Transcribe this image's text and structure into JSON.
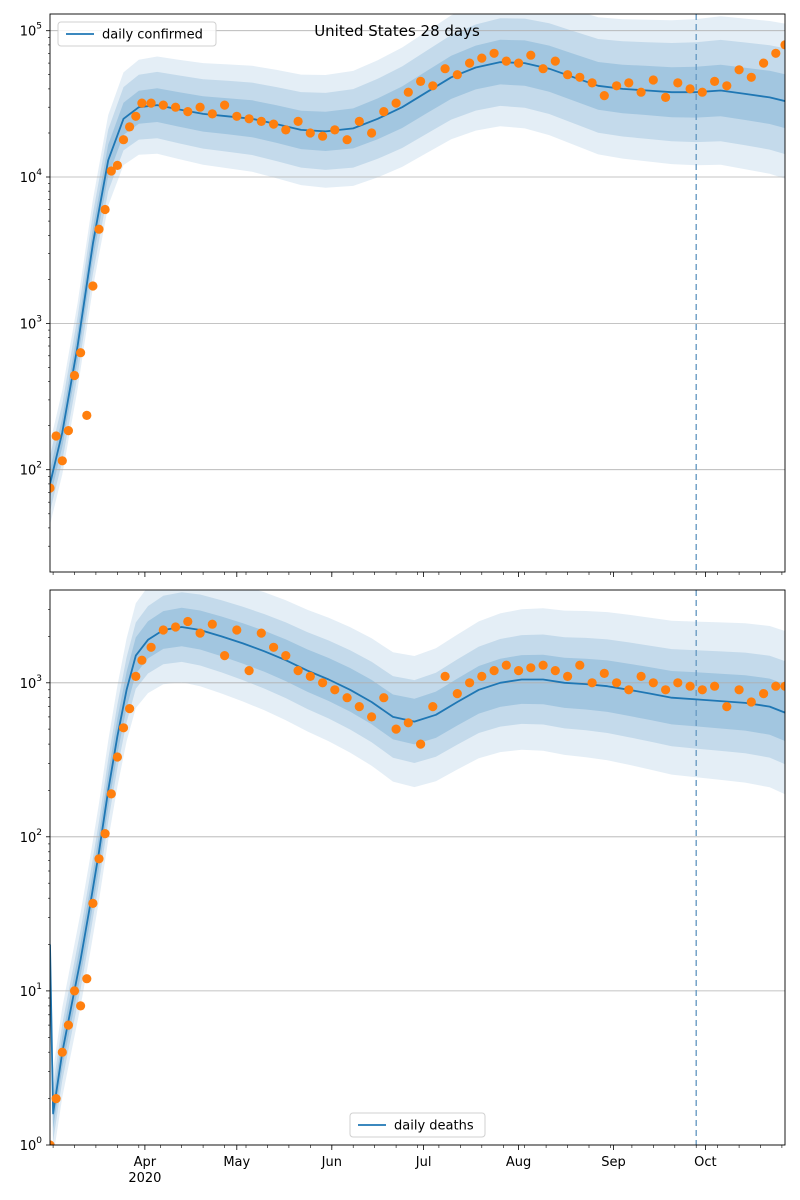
{
  "figure": {
    "title": "United States 28 days"
  },
  "chart_data": [
    {
      "type": "line",
      "title": "United States 28 days",
      "yscale": "log",
      "ylim": [
        20,
        130000
      ],
      "xlim": [
        "2020-03-01",
        "2020-10-27"
      ],
      "y_ticks": [
        {
          "value": 100,
          "base": "10",
          "exp": "2"
        },
        {
          "value": 1000,
          "base": "10",
          "exp": "3"
        },
        {
          "value": 10000,
          "base": "10",
          "exp": "4"
        },
        {
          "value": 100000,
          "base": "10",
          "exp": "5"
        }
      ],
      "x_tick_labels": [],
      "grid": "y-major",
      "legend": {
        "position": "top-left",
        "entries": [
          "daily confirmed"
        ]
      },
      "forecast_start": "2020-09-28",
      "model": {
        "name": "daily confirmed",
        "color": "#1f77b4",
        "dates": [
          "2020-03-01",
          "2020-03-05",
          "2020-03-10",
          "2020-03-15",
          "2020-03-20",
          "2020-03-25",
          "2020-03-30",
          "2020-04-05",
          "2020-04-12",
          "2020-04-20",
          "2020-04-28",
          "2020-05-06",
          "2020-05-14",
          "2020-05-22",
          "2020-05-30",
          "2020-06-08",
          "2020-06-16",
          "2020-06-24",
          "2020-07-02",
          "2020-07-10",
          "2020-07-18",
          "2020-07-26",
          "2020-08-03",
          "2020-08-11",
          "2020-08-19",
          "2020-08-27",
          "2020-09-04",
          "2020-09-12",
          "2020-09-20",
          "2020-09-28",
          "2020-10-06",
          "2020-10-14",
          "2020-10-22",
          "2020-10-27"
        ],
        "values": [
          80,
          180,
          700,
          3500,
          13000,
          25000,
          30000,
          31000,
          29000,
          27000,
          26000,
          25000,
          23000,
          21000,
          20500,
          21500,
          25000,
          30000,
          38000,
          48000,
          56000,
          61000,
          60000,
          55000,
          48000,
          42000,
          40000,
          39000,
          38000,
          38000,
          39000,
          37000,
          35000,
          33000
        ],
        "band_ratios": [
          1.25,
          1.55,
          1.9
        ]
      },
      "observed": {
        "color": "#ff7f0e",
        "dates": [
          "2020-03-01",
          "2020-03-03",
          "2020-03-05",
          "2020-03-07",
          "2020-03-09",
          "2020-03-11",
          "2020-03-13",
          "2020-03-15",
          "2020-03-17",
          "2020-03-19",
          "2020-03-21",
          "2020-03-23",
          "2020-03-25",
          "2020-03-27",
          "2020-03-29",
          "2020-03-31",
          "2020-04-03",
          "2020-04-07",
          "2020-04-11",
          "2020-04-15",
          "2020-04-19",
          "2020-04-23",
          "2020-04-27",
          "2020-05-01",
          "2020-05-05",
          "2020-05-09",
          "2020-05-13",
          "2020-05-17",
          "2020-05-21",
          "2020-05-25",
          "2020-05-29",
          "2020-06-02",
          "2020-06-06",
          "2020-06-10",
          "2020-06-14",
          "2020-06-18",
          "2020-06-22",
          "2020-06-26",
          "2020-06-30",
          "2020-07-04",
          "2020-07-08",
          "2020-07-12",
          "2020-07-16",
          "2020-07-20",
          "2020-07-24",
          "2020-07-28",
          "2020-08-01",
          "2020-08-05",
          "2020-08-09",
          "2020-08-13",
          "2020-08-17",
          "2020-08-21",
          "2020-08-25",
          "2020-08-29",
          "2020-09-02",
          "2020-09-06",
          "2020-09-10",
          "2020-09-14",
          "2020-09-18",
          "2020-09-22",
          "2020-09-26",
          "2020-09-30",
          "2020-10-04",
          "2020-10-08",
          "2020-10-12",
          "2020-10-16",
          "2020-10-20",
          "2020-10-24",
          "2020-10-27"
        ],
        "values": [
          75,
          170,
          115,
          185,
          440,
          630,
          235,
          1800,
          4400,
          6000,
          11000,
          12000,
          18000,
          22000,
          26000,
          32000,
          32000,
          31000,
          30000,
          28000,
          30000,
          27000,
          31000,
          26000,
          25000,
          24000,
          23000,
          21000,
          24000,
          20000,
          19000,
          21000,
          18000,
          24000,
          20000,
          28000,
          32000,
          38000,
          45000,
          42000,
          55000,
          50000,
          60000,
          65000,
          70000,
          62000,
          60000,
          68000,
          55000,
          62000,
          50000,
          48000,
          44000,
          36000,
          42000,
          44000,
          38000,
          46000,
          35000,
          44000,
          40000,
          38000,
          45000,
          42000,
          54000,
          48000,
          60000,
          70000,
          80000
        ]
      }
    },
    {
      "type": "line",
      "yscale": "log",
      "ylim": [
        1,
        4000
      ],
      "xlim": [
        "2020-03-01",
        "2020-10-27"
      ],
      "y_ticks": [
        {
          "value": 1,
          "base": "10",
          "exp": "0"
        },
        {
          "value": 10,
          "base": "10",
          "exp": "1"
        },
        {
          "value": 100,
          "base": "10",
          "exp": "2"
        },
        {
          "value": 1000,
          "base": "10",
          "exp": "3"
        }
      ],
      "x_tick_labels": [
        {
          "date": "2020-04-01",
          "label": "Apr"
        },
        {
          "date": "2020-05-01",
          "label": "May"
        },
        {
          "date": "2020-06-01",
          "label": "Jun"
        },
        {
          "date": "2020-07-01",
          "label": "Jul"
        },
        {
          "date": "2020-08-01",
          "label": "Aug"
        },
        {
          "date": "2020-09-01",
          "label": "Sep"
        },
        {
          "date": "2020-10-01",
          "label": "Oct"
        }
      ],
      "year_label": {
        "date": "2020-04-01",
        "label": "2020"
      },
      "grid": "y-major",
      "legend": {
        "position": "bottom-center",
        "entries": [
          "daily deaths"
        ]
      },
      "forecast_start": "2020-09-28",
      "model": {
        "name": "daily deaths",
        "color": "#1f77b4",
        "dates": [
          "2020-03-01",
          "2020-03-02",
          "2020-03-05",
          "2020-03-08",
          "2020-03-11",
          "2020-03-14",
          "2020-03-17",
          "2020-03-20",
          "2020-03-23",
          "2020-03-26",
          "2020-03-29",
          "2020-04-02",
          "2020-04-07",
          "2020-04-13",
          "2020-04-19",
          "2020-04-26",
          "2020-05-03",
          "2020-05-10",
          "2020-05-17",
          "2020-05-24",
          "2020-05-31",
          "2020-06-07",
          "2020-06-14",
          "2020-06-21",
          "2020-06-28",
          "2020-07-05",
          "2020-07-12",
          "2020-07-19",
          "2020-07-26",
          "2020-08-02",
          "2020-08-09",
          "2020-08-16",
          "2020-08-23",
          "2020-08-30",
          "2020-09-06",
          "2020-09-13",
          "2020-09-20",
          "2020-09-28",
          "2020-10-06",
          "2020-10-14",
          "2020-10-22",
          "2020-10-27"
        ],
        "values": [
          20,
          1.6,
          4,
          8,
          16,
          35,
          80,
          200,
          450,
          900,
          1500,
          1900,
          2200,
          2300,
          2200,
          2000,
          1800,
          1600,
          1400,
          1200,
          1050,
          900,
          750,
          600,
          560,
          620,
          750,
          900,
          1000,
          1050,
          1050,
          1000,
          980,
          950,
          900,
          850,
          800,
          780,
          760,
          740,
          700,
          640
        ],
        "band_ratios": [
          1.25,
          1.5,
          1.9
        ]
      },
      "observed": {
        "color": "#ff7f0e",
        "dates": [
          "2020-03-01",
          "2020-03-03",
          "2020-03-05",
          "2020-03-07",
          "2020-03-09",
          "2020-03-11",
          "2020-03-13",
          "2020-03-15",
          "2020-03-17",
          "2020-03-19",
          "2020-03-21",
          "2020-03-23",
          "2020-03-25",
          "2020-03-27",
          "2020-03-29",
          "2020-03-31",
          "2020-04-03",
          "2020-04-07",
          "2020-04-11",
          "2020-04-15",
          "2020-04-19",
          "2020-04-23",
          "2020-04-27",
          "2020-05-01",
          "2020-05-05",
          "2020-05-09",
          "2020-05-13",
          "2020-05-17",
          "2020-05-21",
          "2020-05-25",
          "2020-05-29",
          "2020-06-02",
          "2020-06-06",
          "2020-06-10",
          "2020-06-14",
          "2020-06-18",
          "2020-06-22",
          "2020-06-26",
          "2020-06-30",
          "2020-07-04",
          "2020-07-08",
          "2020-07-12",
          "2020-07-16",
          "2020-07-20",
          "2020-07-24",
          "2020-07-28",
          "2020-08-01",
          "2020-08-05",
          "2020-08-09",
          "2020-08-13",
          "2020-08-17",
          "2020-08-21",
          "2020-08-25",
          "2020-08-29",
          "2020-09-02",
          "2020-09-06",
          "2020-09-10",
          "2020-09-14",
          "2020-09-18",
          "2020-09-22",
          "2020-09-26",
          "2020-09-30",
          "2020-10-04",
          "2020-10-08",
          "2020-10-12",
          "2020-10-16",
          "2020-10-20",
          "2020-10-24",
          "2020-10-27"
        ],
        "values": [
          1,
          2,
          4,
          6,
          10,
          8,
          12,
          37,
          72,
          105,
          190,
          330,
          510,
          680,
          1100,
          1400,
          1700,
          2200,
          2300,
          2500,
          2100,
          2400,
          1500,
          2200,
          1200,
          2100,
          1700,
          1500,
          1200,
          1100,
          1000,
          900,
          800,
          700,
          600,
          800,
          500,
          550,
          400,
          700,
          1100,
          850,
          1000,
          1100,
          1200,
          1300,
          1200,
          1250,
          1300,
          1200,
          1100,
          1300,
          1000,
          1150,
          1000,
          900,
          1100,
          1000,
          900,
          1000,
          950,
          900,
          950,
          700,
          900,
          750,
          850,
          950,
          950
        ]
      }
    }
  ]
}
